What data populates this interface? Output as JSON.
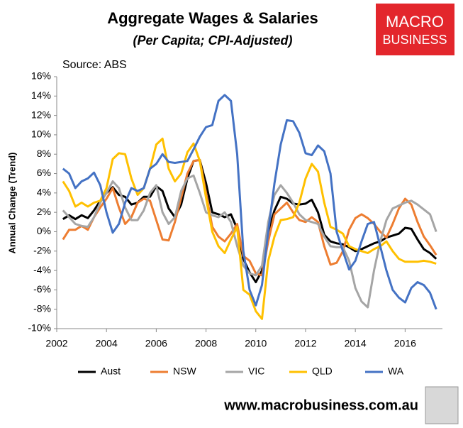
{
  "chart_data": {
    "type": "line",
    "title": "Aggregate Wages & Salaries",
    "subtitle": "(Per Capita; CPI-Adjusted)",
    "source": "Source: ABS",
    "ylabel": "Annual Change (Trend)",
    "x": [
      2002.25,
      2002.5,
      2002.75,
      2003,
      2003.25,
      2003.5,
      2003.75,
      2004,
      2004.25,
      2004.5,
      2004.75,
      2005,
      2005.25,
      2005.5,
      2005.75,
      2006,
      2006.25,
      2006.5,
      2006.75,
      2007,
      2007.25,
      2007.5,
      2007.75,
      2008,
      2008.25,
      2008.5,
      2008.75,
      2009,
      2009.25,
      2009.5,
      2009.75,
      2010,
      2010.25,
      2010.5,
      2010.75,
      2011,
      2011.25,
      2011.5,
      2011.75,
      2012,
      2012.25,
      2012.5,
      2012.75,
      2013,
      2013.25,
      2013.5,
      2013.75,
      2014,
      2014.25,
      2014.5,
      2014.75,
      2015,
      2015.25,
      2015.5,
      2015.75,
      2016,
      2016.25,
      2016.5,
      2016.75,
      2017,
      2017.25
    ],
    "series": [
      {
        "name": "Aust",
        "color": "#000000",
        "values": [
          1.3,
          1.7,
          1.3,
          1.7,
          1.4,
          2.2,
          3.2,
          4.0,
          4.6,
          3.8,
          3.6,
          2.8,
          3.0,
          3.6,
          3.6,
          4.7,
          4.2,
          2.4,
          1.5,
          2.8,
          5.5,
          7.3,
          7.4,
          5.0,
          2.0,
          1.8,
          1.5,
          1.8,
          0.3,
          -2.8,
          -4.2,
          -5.2,
          -4.0,
          0,
          2.2,
          3.6,
          3.4,
          2.9,
          2.8,
          2.9,
          3.3,
          2.0,
          -0.3,
          -1.0,
          -1.2,
          -1.3,
          -1.6,
          -2.0,
          -1.8,
          -1.5,
          -1.2,
          -1.0,
          -0.6,
          -0.4,
          -0.2,
          0.4,
          0.3,
          -0.8,
          -1.8,
          -2.2,
          -2.8
        ]
      },
      {
        "name": "NSW",
        "color": "#ed7d31",
        "values": [
          -0.8,
          0.2,
          0.2,
          0.6,
          0.2,
          1.5,
          2.5,
          3.4,
          4.5,
          2.5,
          0.8,
          1.5,
          3.0,
          3.4,
          3.2,
          1.2,
          -0.8,
          -0.9,
          1.0,
          3.5,
          6.0,
          7.3,
          7.4,
          4.0,
          0.5,
          -0.5,
          -1.0,
          -0.2,
          0.8,
          -2.5,
          -3.0,
          -4.3,
          -4.5,
          -1.0,
          1.8,
          2.4,
          3.0,
          2.0,
          1.2,
          1.0,
          1.5,
          1.0,
          -1.5,
          -3.4,
          -3.2,
          -2.0,
          0.2,
          1.4,
          1.8,
          1.4,
          0.8,
          0,
          -0.6,
          0.8,
          2.4,
          3.4,
          2.8,
          1.0,
          -0.5,
          -1.4,
          -2.4
        ]
      },
      {
        "name": "VIC",
        "color": "#a5a5a5",
        "values": [
          2.2,
          1.5,
          0.8,
          0.6,
          0.5,
          1.5,
          3.0,
          4.0,
          5.2,
          4.5,
          2.5,
          1.2,
          1.2,
          2.2,
          4.0,
          4.8,
          2.0,
          0.8,
          1.5,
          4.2,
          5.5,
          5.8,
          4.0,
          2.0,
          1.7,
          1.5,
          2.0,
          1.0,
          -1.5,
          -3.5,
          -4.3,
          -4.5,
          -3.5,
          1.0,
          3.8,
          4.8,
          4.0,
          3.0,
          1.8,
          1.2,
          1.0,
          0.8,
          -0.5,
          -1.5,
          -1.6,
          -1.6,
          -3.0,
          -5.8,
          -7.2,
          -7.8,
          -4.0,
          -1.0,
          1.2,
          2.4,
          2.7,
          3.0,
          3.2,
          2.8,
          2.3,
          1.8,
          0.0
        ]
      },
      {
        "name": "QLD",
        "color": "#ffc000",
        "values": [
          5.2,
          4.2,
          2.6,
          3.0,
          2.6,
          3.0,
          3.2,
          4.5,
          7.5,
          8.1,
          8.0,
          5.5,
          3.8,
          4.5,
          6.5,
          9.0,
          9.6,
          6.5,
          5.2,
          6.0,
          8.2,
          9.1,
          7.3,
          3.5,
          0,
          -1.5,
          -2.2,
          -0.8,
          0.5,
          -6.0,
          -6.5,
          -8.2,
          -9.0,
          -3.0,
          -0.5,
          1.2,
          1.3,
          1.5,
          3.0,
          5.5,
          7.0,
          6.2,
          3.0,
          0.5,
          0.2,
          -0.2,
          -1.5,
          -1.8,
          -2.0,
          -2.2,
          -1.8,
          -1.5,
          -1.0,
          -2.0,
          -2.8,
          -3.1,
          -3.1,
          -3.1,
          -3.0,
          -3.1,
          -3.3
        ]
      },
      {
        "name": "WA",
        "color": "#4472c4",
        "values": [
          6.5,
          6.0,
          4.5,
          5.2,
          5.5,
          6.1,
          4.8,
          2.0,
          -0.1,
          0.8,
          3.0,
          4.5,
          4.2,
          4.5,
          6.5,
          7.0,
          8.0,
          7.2,
          7.1,
          7.2,
          7.3,
          8.5,
          9.8,
          10.8,
          11.0,
          13.5,
          14.1,
          13.5,
          8.0,
          -2.0,
          -6.0,
          -7.6,
          -5.5,
          0,
          5.0,
          9.0,
          11.5,
          11.4,
          10.2,
          8.1,
          7.9,
          8.9,
          8.3,
          6.0,
          0,
          -2.0,
          -3.9,
          -3.0,
          -1.0,
          0.8,
          1.0,
          -1.5,
          -4.0,
          -6.0,
          -6.8,
          -7.3,
          -5.8,
          -5.2,
          -5.5,
          -6.3,
          -8.0
        ]
      }
    ],
    "xlim": [
      2002,
      2017.5
    ],
    "xticks": [
      2002,
      2004,
      2006,
      2008,
      2010,
      2012,
      2014,
      2016
    ],
    "ylim": [
      -10,
      16
    ],
    "yticks": [
      {
        "value": -10,
        "label": "-10%"
      },
      {
        "value": -8,
        "label": "-8%"
      },
      {
        "value": -6,
        "label": "-6%"
      },
      {
        "value": -4,
        "label": "-4%"
      },
      {
        "value": -2,
        "label": "-2%"
      },
      {
        "value": 0,
        "label": "0%"
      },
      {
        "value": 2,
        "label": "2%"
      },
      {
        "value": 4,
        "label": "4%"
      },
      {
        "value": 6,
        "label": "6%"
      },
      {
        "value": 8,
        "label": "8%"
      },
      {
        "value": 10,
        "label": "10%"
      },
      {
        "value": 12,
        "label": "12%"
      },
      {
        "value": 14,
        "label": "14%"
      },
      {
        "value": 16,
        "label": "16%"
      }
    ],
    "grid": false,
    "legend": "bottom"
  },
  "logo": {
    "line1": "MACRO",
    "line2": "BUSINESS"
  },
  "footer": "www.macrobusiness.com.au"
}
